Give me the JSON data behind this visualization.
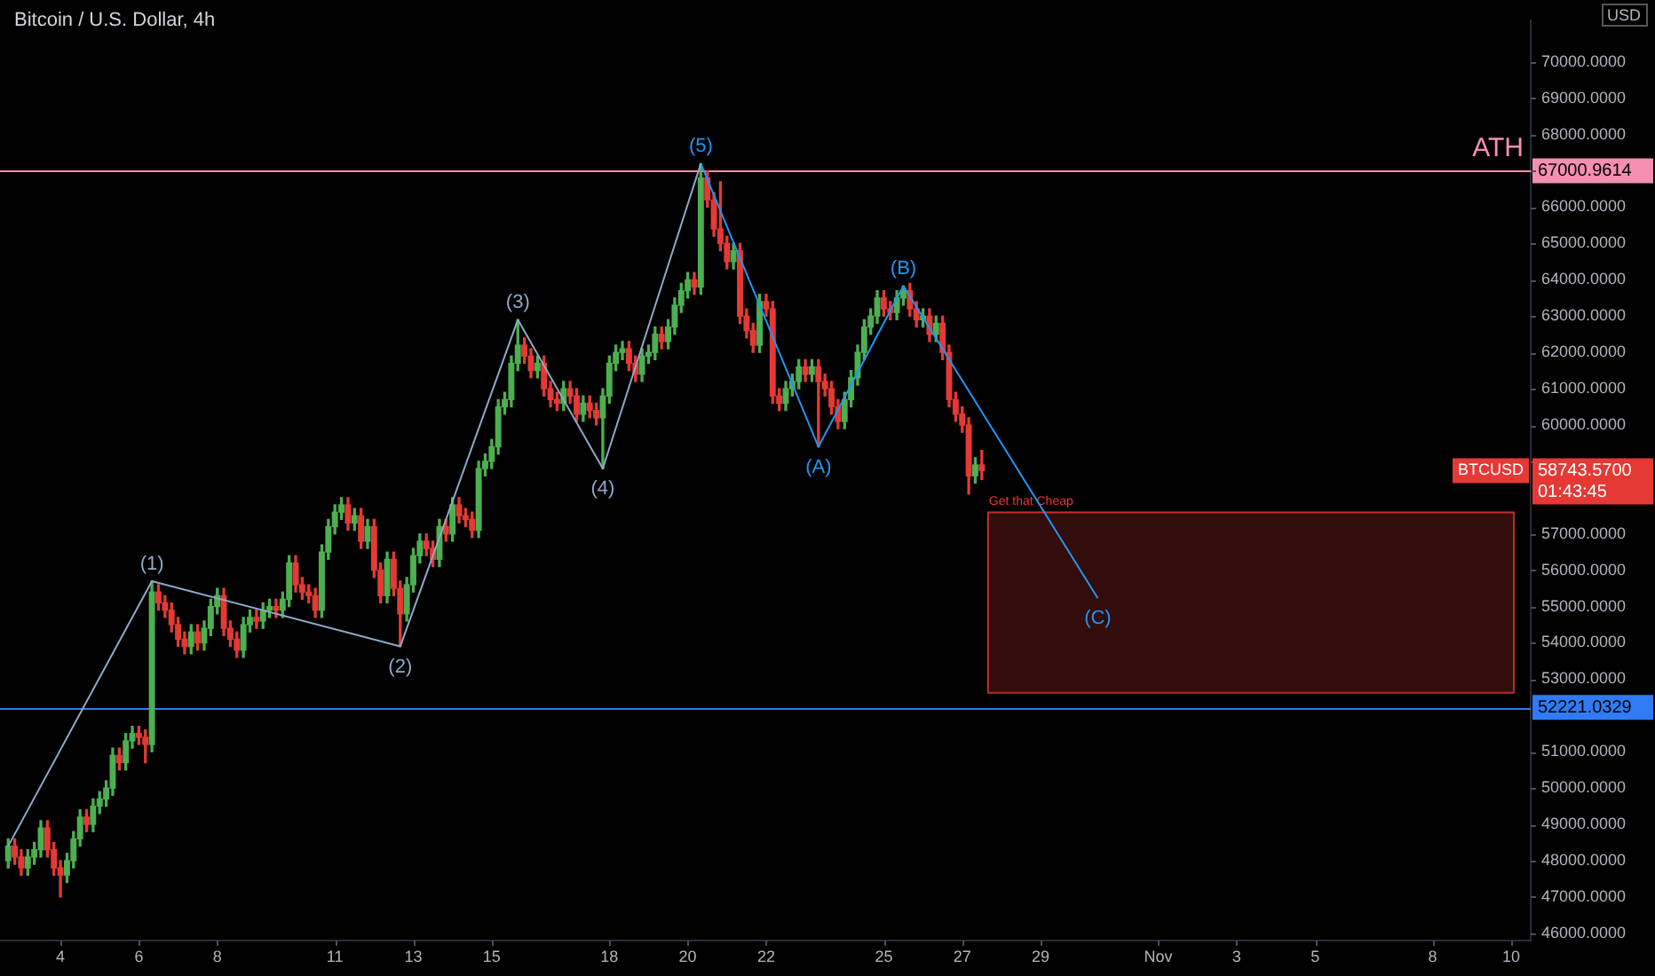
{
  "chart_data": {
    "type": "candlestick",
    "title": "Bitcoin / U.S. Dollar, 4h",
    "ylabel": "USD",
    "x": [
      "--10-02T16:00",
      "--10-02T20:00",
      "--10-03T00:00",
      "--10-03T04:00",
      "--10-03T08:00",
      "--10-03T12:00",
      "--10-03T16:00",
      "--10-03T20:00",
      "--10-04T00:00",
      "--10-04T04:00",
      "--10-04T08:00",
      "--10-04T12:00",
      "--10-04T16:00",
      "--10-04T20:00",
      "--10-05T00:00",
      "--10-05T04:00",
      "--10-05T08:00",
      "--10-05T12:00",
      "--10-05T16:00",
      "--10-05T20:00",
      "--10-06T00:00",
      "--10-06T04:00",
      "--10-06T08:00",
      "--10-06T12:00",
      "--10-06T16:00",
      "--10-06T20:00",
      "--10-07T00:00",
      "--10-07T04:00",
      "--10-07T08:00",
      "--10-07T12:00",
      "--10-07T16:00",
      "--10-07T20:00",
      "--10-08T00:00",
      "--10-08T04:00",
      "--10-08T08:00",
      "--10-08T12:00",
      "--10-08T16:00",
      "--10-08T20:00",
      "--10-09T00:00",
      "--10-09T04:00",
      "--10-09T08:00",
      "--10-09T12:00",
      "--10-09T16:00",
      "--10-09T20:00",
      "--10-10T00:00",
      "--10-10T04:00",
      "--10-10T08:00",
      "--10-10T12:00",
      "--10-10T16:00",
      "--10-10T20:00",
      "--10-11T00:00",
      "--10-11T04:00",
      "--10-11T08:00",
      "--10-11T12:00",
      "--10-11T16:00",
      "--10-11T20:00",
      "--10-12T00:00",
      "--10-12T04:00",
      "--10-12T08:00",
      "--10-12T12:00",
      "--10-12T16:00",
      "--10-12T20:00",
      "--10-13T00:00",
      "--10-13T04:00",
      "--10-13T08:00",
      "--10-13T12:00",
      "--10-13T16:00",
      "--10-13T20:00",
      "--10-14T00:00",
      "--10-14T04:00",
      "--10-14T08:00",
      "--10-14T12:00",
      "--10-14T16:00",
      "--10-14T20:00",
      "--10-15T00:00",
      "--10-15T04:00",
      "--10-15T08:00",
      "--10-15T12:00",
      "--10-15T16:00",
      "--10-15T20:00",
      "--10-16T00:00",
      "--10-16T04:00",
      "--10-16T08:00",
      "--10-16T12:00",
      "--10-16T16:00",
      "--10-16T20:00",
      "--10-17T00:00",
      "--10-17T04:00",
      "--10-17T08:00",
      "--10-17T12:00",
      "--10-17T16:00",
      "--10-17T20:00",
      "--10-18T00:00",
      "--10-18T04:00",
      "--10-18T08:00",
      "--10-18T12:00",
      "--10-18T16:00",
      "--10-18T20:00",
      "--10-19T00:00",
      "--10-19T04:00",
      "--10-19T08:00",
      "--10-19T12:00",
      "--10-19T16:00",
      "--10-19T20:00",
      "--10-20T00:00",
      "--10-20T04:00",
      "--10-20T08:00",
      "--10-20T12:00",
      "--10-20T16:00",
      "--10-20T20:00",
      "--10-21T00:00",
      "--10-21T04:00",
      "--10-21T08:00",
      "--10-21T12:00",
      "--10-21T16:00",
      "--10-21T20:00",
      "--10-22T00:00",
      "--10-22T04:00",
      "--10-22T08:00",
      "--10-22T12:00",
      "--10-22T16:00",
      "--10-22T20:00",
      "--10-23T00:00",
      "--10-23T04:00",
      "--10-23T08:00",
      "--10-23T12:00",
      "--10-23T16:00",
      "--10-23T20:00",
      "--10-24T00:00",
      "--10-24T04:00",
      "--10-24T08:00",
      "--10-24T12:00",
      "--10-24T16:00",
      "--10-24T20:00",
      "--10-25T00:00",
      "--10-25T04:00",
      "--10-25T08:00",
      "--10-25T12:00",
      "--10-25T16:00",
      "--10-25T20:00",
      "--10-26T00:00",
      "--10-26T04:00",
      "--10-26T08:00",
      "--10-26T12:00",
      "--10-26T16:00",
      "--10-26T20:00",
      "--10-27T00:00",
      "--10-27T04:00",
      "--10-27T08:00",
      "--10-27T12:00"
    ],
    "ohlc": [
      [
        48000,
        48600,
        47800,
        48400
      ],
      [
        48400,
        48600,
        47900,
        48100
      ],
      [
        48100,
        48300,
        47600,
        47800
      ],
      [
        47800,
        48300,
        47600,
        48100
      ],
      [
        48100,
        48500,
        47900,
        48300
      ],
      [
        48300,
        49100,
        48100,
        48900
      ],
      [
        48900,
        49100,
        48100,
        48300
      ],
      [
        48300,
        48500,
        47600,
        47800
      ],
      [
        47800,
        48000,
        47000,
        47600
      ],
      [
        47600,
        48200,
        47400,
        48000
      ],
      [
        48000,
        48800,
        47800,
        48600
      ],
      [
        48600,
        49400,
        48400,
        49200
      ],
      [
        49200,
        49400,
        48800,
        49000
      ],
      [
        49000,
        49700,
        48800,
        49500
      ],
      [
        49500,
        49900,
        49300,
        49700
      ],
      [
        49700,
        50200,
        49500,
        50000
      ],
      [
        50000,
        51100,
        49800,
        50900
      ],
      [
        50900,
        51100,
        50500,
        50700
      ],
      [
        50700,
        51500,
        50500,
        51300
      ],
      [
        51300,
        51700,
        51100,
        51500
      ],
      [
        51500,
        51700,
        51200,
        51400
      ],
      [
        51400,
        51600,
        50700,
        51200
      ],
      [
        51200,
        55700,
        51000,
        55400
      ],
      [
        55400,
        55600,
        54900,
        55100
      ],
      [
        55100,
        55300,
        54700,
        54900
      ],
      [
        54900,
        55100,
        54300,
        54500
      ],
      [
        54500,
        54700,
        53900,
        54100
      ],
      [
        54100,
        54300,
        53700,
        53900
      ],
      [
        53900,
        54500,
        53700,
        54300
      ],
      [
        54300,
        54500,
        53800,
        54000
      ],
      [
        54000,
        54600,
        53800,
        54400
      ],
      [
        54400,
        55200,
        54200,
        55000
      ],
      [
        55000,
        55500,
        54800,
        55300
      ],
      [
        55300,
        55500,
        54200,
        54400
      ],
      [
        54400,
        54600,
        53900,
        54100
      ],
      [
        54100,
        54300,
        53600,
        53800
      ],
      [
        53800,
        54700,
        53600,
        54500
      ],
      [
        54500,
        54900,
        54300,
        54700
      ],
      [
        54700,
        54900,
        54400,
        54600
      ],
      [
        54600,
        55100,
        54400,
        54900
      ],
      [
        54900,
        55200,
        54700,
        55000
      ],
      [
        55000,
        55200,
        54700,
        54900
      ],
      [
        54900,
        55400,
        54700,
        55200
      ],
      [
        55200,
        56400,
        55000,
        56200
      ],
      [
        56200,
        56400,
        55400,
        55600
      ],
      [
        55600,
        55800,
        55200,
        55400
      ],
      [
        55400,
        55600,
        55100,
        55300
      ],
      [
        55300,
        55500,
        54700,
        54900
      ],
      [
        54900,
        56700,
        54700,
        56500
      ],
      [
        56500,
        57400,
        56300,
        57200
      ],
      [
        57200,
        57800,
        57000,
        57600
      ],
      [
        57600,
        58000,
        57400,
        57800
      ],
      [
        57800,
        58000,
        57100,
        57300
      ],
      [
        57300,
        57700,
        57100,
        57500
      ],
      [
        57500,
        57700,
        56600,
        56800
      ],
      [
        56800,
        57400,
        56600,
        57200
      ],
      [
        57200,
        57400,
        55800,
        56000
      ],
      [
        56000,
        56200,
        55100,
        55300
      ],
      [
        55300,
        56500,
        55100,
        56300
      ],
      [
        56300,
        56500,
        55300,
        55500
      ],
      [
        55500,
        55700,
        53900,
        54800
      ],
      [
        54800,
        55800,
        54600,
        55600
      ],
      [
        55600,
        56600,
        55400,
        56400
      ],
      [
        56400,
        57000,
        56200,
        56800
      ],
      [
        56800,
        57000,
        56400,
        56600
      ],
      [
        56600,
        56800,
        56100,
        56300
      ],
      [
        56300,
        57400,
        56100,
        57200
      ],
      [
        57200,
        57400,
        56800,
        57000
      ],
      [
        57000,
        58000,
        56800,
        57800
      ],
      [
        57800,
        58000,
        57300,
        57500
      ],
      [
        57500,
        57700,
        57200,
        57400
      ],
      [
        57400,
        57600,
        56900,
        57100
      ],
      [
        57100,
        59000,
        56900,
        58800
      ],
      [
        58800,
        59200,
        58600,
        59000
      ],
      [
        59000,
        59600,
        58800,
        59400
      ],
      [
        59400,
        60700,
        59200,
        60500
      ],
      [
        60500,
        60900,
        60300,
        60700
      ],
      [
        60700,
        61900,
        60500,
        61700
      ],
      [
        61700,
        62900,
        61500,
        62200
      ],
      [
        62200,
        62400,
        61700,
        61900
      ],
      [
        61900,
        62100,
        61300,
        61500
      ],
      [
        61500,
        61900,
        61300,
        61700
      ],
      [
        61700,
        61900,
        60800,
        61000
      ],
      [
        61000,
        61200,
        60500,
        60700
      ],
      [
        60700,
        60900,
        60400,
        60600
      ],
      [
        60600,
        61200,
        60400,
        61000
      ],
      [
        61000,
        61200,
        60600,
        60800
      ],
      [
        60800,
        61000,
        60100,
        60300
      ],
      [
        60300,
        60800,
        60100,
        60600
      ],
      [
        60600,
        60800,
        60200,
        60400
      ],
      [
        60400,
        60600,
        60000,
        60200
      ],
      [
        60200,
        61000,
        58800,
        60800
      ],
      [
        60800,
        61900,
        60600,
        61700
      ],
      [
        61700,
        62200,
        61500,
        62000
      ],
      [
        62000,
        62300,
        61800,
        62100
      ],
      [
        62100,
        62300,
        61500,
        61700
      ],
      [
        61700,
        61900,
        61200,
        61400
      ],
      [
        61400,
        62100,
        61200,
        61900
      ],
      [
        61900,
        62200,
        61700,
        62000
      ],
      [
        62000,
        62700,
        61800,
        62500
      ],
      [
        62500,
        62700,
        62100,
        62300
      ],
      [
        62300,
        62900,
        62100,
        62700
      ],
      [
        62700,
        63500,
        62500,
        63300
      ],
      [
        63300,
        63900,
        63100,
        63700
      ],
      [
        63700,
        64200,
        63500,
        64000
      ],
      [
        64000,
        64200,
        63600,
        63800
      ],
      [
        63800,
        67200,
        63600,
        66800
      ],
      [
        66800,
        67000,
        66000,
        66200
      ],
      [
        66200,
        66400,
        65200,
        65400
      ],
      [
        65400,
        66700,
        64800,
        65000
      ],
      [
        65000,
        65200,
        64300,
        64500
      ],
      [
        64500,
        65000,
        64300,
        64800
      ],
      [
        64800,
        65000,
        62800,
        63000
      ],
      [
        63000,
        63200,
        62400,
        62600
      ],
      [
        62600,
        62800,
        62000,
        62200
      ],
      [
        62200,
        63600,
        62000,
        63400
      ],
      [
        63400,
        63600,
        63000,
        63200
      ],
      [
        63200,
        63400,
        60600,
        60800
      ],
      [
        60800,
        61000,
        60400,
        60600
      ],
      [
        60600,
        61200,
        60400,
        61000
      ],
      [
        61000,
        61400,
        60800,
        61200
      ],
      [
        61200,
        61800,
        61000,
        61600
      ],
      [
        61600,
        61800,
        61200,
        61400
      ],
      [
        61400,
        61800,
        61200,
        61600
      ],
      [
        61600,
        61800,
        59400,
        61200
      ],
      [
        61200,
        61400,
        60800,
        61000
      ],
      [
        61000,
        61200,
        60300,
        60500
      ],
      [
        60500,
        60700,
        59900,
        60100
      ],
      [
        60100,
        60900,
        59900,
        60700
      ],
      [
        60700,
        61500,
        60500,
        61300
      ],
      [
        61300,
        62200,
        61100,
        62000
      ],
      [
        62000,
        62900,
        61800,
        62700
      ],
      [
        62700,
        63200,
        62500,
        63000
      ],
      [
        63000,
        63700,
        62800,
        63500
      ],
      [
        63500,
        63700,
        63000,
        63200
      ],
      [
        63200,
        63400,
        62900,
        63100
      ],
      [
        63100,
        63700,
        62900,
        63500
      ],
      [
        63500,
        63830,
        63300,
        63700
      ],
      [
        63700,
        63900,
        63000,
        63200
      ],
      [
        63200,
        63400,
        62700,
        62900
      ],
      [
        62900,
        63200,
        62700,
        63000
      ],
      [
        63000,
        63200,
        62300,
        62500
      ],
      [
        62500,
        63000,
        62300,
        62800
      ],
      [
        62800,
        63000,
        61800,
        62000
      ],
      [
        62000,
        62200,
        60500,
        60700
      ],
      [
        60700,
        60900,
        60100,
        60300
      ],
      [
        60300,
        60500,
        59800,
        60000
      ],
      [
        60000,
        60200,
        58100,
        58600
      ],
      [
        58600,
        59100,
        58400,
        58900
      ],
      [
        58900,
        59300,
        58500,
        58743.57
      ]
    ],
    "colors": [
      "#4caf50",
      "#e53935",
      "#e53935",
      "#4caf50",
      "#4caf50",
      "#4caf50",
      "#e53935",
      "#e53935",
      "#e53935",
      "#4caf50",
      "#4caf50",
      "#4caf50",
      "#e53935",
      "#4caf50",
      "#4caf50",
      "#4caf50",
      "#4caf50",
      "#e53935",
      "#4caf50",
      "#4caf50",
      "#e53935",
      "#e53935",
      "#4caf50",
      "#e53935",
      "#e53935",
      "#e53935",
      "#e53935",
      "#e53935",
      "#4caf50",
      "#e53935",
      "#4caf50",
      "#4caf50",
      "#4caf50",
      "#e53935",
      "#e53935",
      "#e53935",
      "#4caf50",
      "#4caf50",
      "#e53935",
      "#4caf50",
      "#4caf50",
      "#e53935",
      "#4caf50",
      "#4caf50",
      "#e53935",
      "#e53935",
      "#e53935",
      "#e53935",
      "#4caf50",
      "#4caf50",
      "#4caf50",
      "#4caf50",
      "#e53935",
      "#4caf50",
      "#e53935",
      "#4caf50",
      "#e53935",
      "#e53935",
      "#4caf50",
      "#e53935",
      "#e53935",
      "#4caf50",
      "#4caf50",
      "#4caf50",
      "#e53935",
      "#e53935",
      "#4caf50",
      "#e53935",
      "#4caf50",
      "#e53935",
      "#e53935",
      "#e53935",
      "#4caf50",
      "#4caf50",
      "#4caf50",
      "#4caf50",
      "#4caf50",
      "#4caf50",
      "#4caf50",
      "#e53935",
      "#e53935",
      "#4caf50",
      "#e53935",
      "#e53935",
      "#e53935",
      "#4caf50",
      "#e53935",
      "#e53935",
      "#4caf50",
      "#e53935",
      "#e53935",
      "#4caf50",
      "#4caf50",
      "#4caf50",
      "#4caf50",
      "#e53935",
      "#e53935",
      "#4caf50",
      "#4caf50",
      "#4caf50",
      "#e53935",
      "#4caf50",
      "#4caf50",
      "#4caf50",
      "#4caf50",
      "#e53935",
      "#4caf50",
      "#e53935",
      "#e53935",
      "#e53935",
      "#e53935",
      "#4caf50",
      "#e53935",
      "#e53935",
      "#e53935",
      "#4caf50",
      "#e53935",
      "#e53935",
      "#e53935",
      "#4caf50",
      "#4caf50",
      "#4caf50",
      "#e53935",
      "#4caf50",
      "#e53935",
      "#e53935",
      "#e53935",
      "#e53935",
      "#4caf50",
      "#4caf50",
      "#4caf50",
      "#4caf50",
      "#4caf50",
      "#4caf50",
      "#e53935",
      "#e53935",
      "#4caf50",
      "#4caf50",
      "#e53935",
      "#e53935",
      "#4caf50",
      "#e53935",
      "#4caf50",
      "#e53935",
      "#e53935",
      "#e53935",
      "#e53935",
      "#e53935",
      "#4caf50",
      "#e53935"
    ],
    "series": [
      {
        "type": "line",
        "color": "#8ea9c9",
        "x": [
          "--10-02T16:00",
          "--10-06T08:00",
          "--10-12T16:00",
          "--10-15T16:00",
          "--10-17T20:00",
          "--10-20T08:00"
        ],
        "values": [
          48400,
          55700,
          53900,
          62900,
          58800,
          67200
        ]
      },
      {
        "type": "line",
        "color": "#2196f3",
        "x": [
          "--10-20T08:00",
          "--10-23T08:00",
          "--10-25T12:00",
          "--10-30T11:00"
        ],
        "values": [
          67200,
          59400,
          63830,
          55230
        ]
      }
    ],
    "xlim": [
      "--10-02T11:00",
      "--11-10T12:00"
    ],
    "xticks": [
      {
        "value": "--10-04",
        "label": "4"
      },
      {
        "value": "--10-06",
        "label": "6"
      },
      {
        "value": "--10-08",
        "label": "8"
      },
      {
        "value": "--10-11",
        "label": "11"
      },
      {
        "value": "--10-13",
        "label": "13"
      },
      {
        "value": "--10-15",
        "label": "15"
      },
      {
        "value": "--10-18",
        "label": "18"
      },
      {
        "value": "--10-20",
        "label": "20"
      },
      {
        "value": "--10-22",
        "label": "22"
      },
      {
        "value": "--10-25",
        "label": "25"
      },
      {
        "value": "--10-27",
        "label": "27"
      },
      {
        "value": "--10-29",
        "label": "29"
      },
      {
        "value": "--11-01",
        "label": "Nov"
      },
      {
        "value": "--11-03",
        "label": "3"
      },
      {
        "value": "--11-05",
        "label": "5"
      },
      {
        "value": "--11-08",
        "label": "8"
      },
      {
        "value": "--11-10",
        "label": "10"
      }
    ],
    "ylim": [
      45800,
      71150
    ],
    "yticks": [
      {
        "value": 46000,
        "label": "46000.0000"
      },
      {
        "value": 47000,
        "label": "47000.0000"
      },
      {
        "value": 48000,
        "label": "48000.0000"
      },
      {
        "value": 49000,
        "label": "49000.0000"
      },
      {
        "value": 50000,
        "label": "50000.0000"
      },
      {
        "value": 51000,
        "label": "51000.0000"
      },
      {
        "value": 53000,
        "label": "53000.0000"
      },
      {
        "value": 54000,
        "label": "54000.0000"
      },
      {
        "value": 55000,
        "label": "55000.0000"
      },
      {
        "value": 56000,
        "label": "56000.0000"
      },
      {
        "value": 57000,
        "label": "57000.0000"
      },
      {
        "value": 59000,
        "label": null
      },
      {
        "value": 60000,
        "label": "60000.0000"
      },
      {
        "value": 61000,
        "label": "61000.0000"
      },
      {
        "value": 62000,
        "label": "62000.0000"
      },
      {
        "value": 63000,
        "label": "63000.0000"
      },
      {
        "value": 64000,
        "label": "64000.0000"
      },
      {
        "value": 65000,
        "label": "65000.0000"
      },
      {
        "value": 66000,
        "label": "66000.0000"
      },
      {
        "value": 67000,
        "label": null
      },
      {
        "value": 68000,
        "label": "68000.0000"
      },
      {
        "value": 69000,
        "label": "69000.0000"
      },
      {
        "value": 70000,
        "label": "70000.0000"
      }
    ],
    "ref_lines": [
      {
        "axis": "y",
        "value": 67000.9614,
        "label": "67000.9614",
        "color": "#f48fb1"
      },
      {
        "axis": "y",
        "value": 52221.0329,
        "label": "52221.0329",
        "color": "#2f7bf5"
      }
    ],
    "bands": [
      {
        "axis": "y",
        "from": 52650,
        "to": 57620,
        "label": "Get that Cheap",
        "color": "#e53935"
      }
    ],
    "annotations": [
      {
        "text": "(1)",
        "x": "--10-06T08:00",
        "y": 55700
      },
      {
        "text": "(2)",
        "x": "--10-12T16:00",
        "y": 53900
      },
      {
        "text": "(3)",
        "x": "--10-15T16:00",
        "y": 62900
      },
      {
        "text": "(4)",
        "x": "--10-17T20:00",
        "y": 58800
      },
      {
        "text": "(5)",
        "x": "--10-20T08:00",
        "y": 67200
      },
      {
        "text": "(A)",
        "x": "--10-23T08:00",
        "y": 59400
      },
      {
        "text": "(B)",
        "x": "--10-25T12:00",
        "y": 63830
      },
      {
        "text": "(C)",
        "x": "--10-30T11:00",
        "y": 55230
      },
      {
        "text": "ATH",
        "y": 67000.9614
      },
      "58743.5700",
      "BTCUSD",
      "01:43:45"
    ]
  }
}
